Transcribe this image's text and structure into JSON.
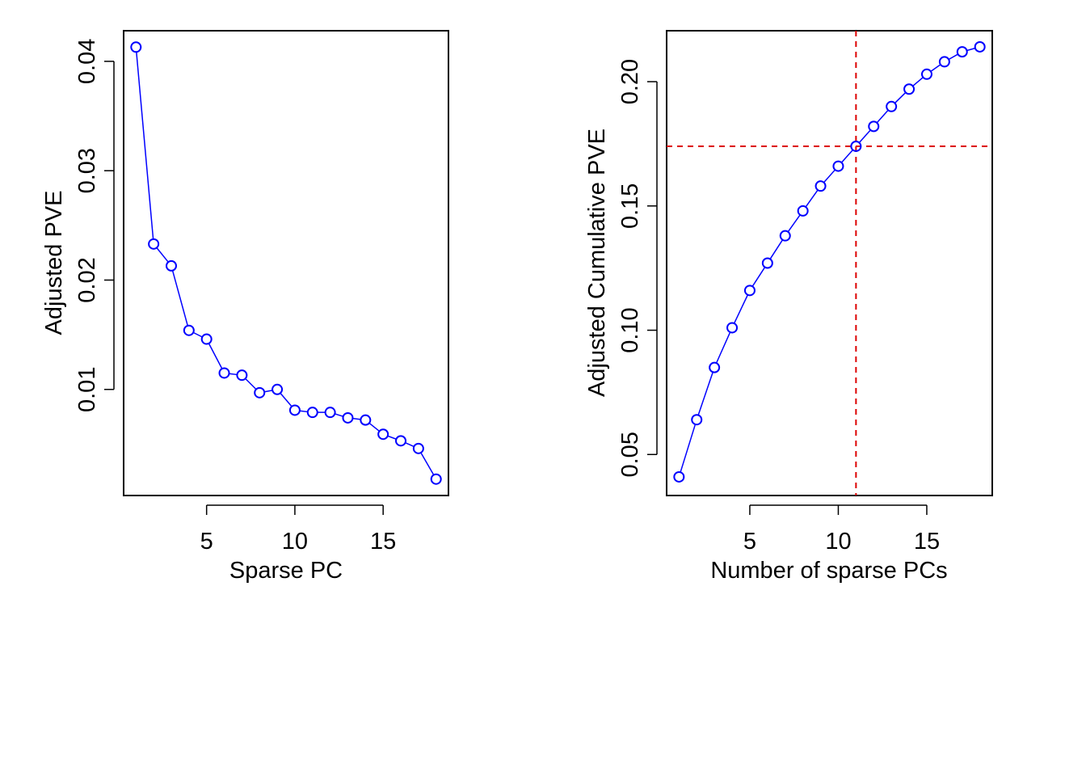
{
  "chart_data": [
    {
      "type": "line",
      "xlabel": "Sparse PC",
      "ylabel": "Adjusted PVE",
      "xlim": [
        0.3,
        18.7
      ],
      "ylim": [
        0.0003,
        0.0428
      ],
      "x_ticks": [
        5,
        10,
        15
      ],
      "x_tick_labels": [
        "5",
        "10",
        "15"
      ],
      "y_ticks": [
        0.01,
        0.02,
        0.03,
        0.04
      ],
      "y_tick_labels": [
        "0.01",
        "0.02",
        "0.03",
        "0.04"
      ],
      "series": [
        {
          "color": "#0000ff",
          "marker": "open-circle",
          "x": [
            1,
            2,
            3,
            4,
            5,
            6,
            7,
            8,
            9,
            10,
            11,
            12,
            13,
            14,
            15,
            16,
            17,
            18
          ],
          "values": [
            0.0413,
            0.0233,
            0.0213,
            0.0154,
            0.0146,
            0.0115,
            0.0113,
            0.0097,
            0.01,
            0.0081,
            0.0079,
            0.0079,
            0.0074,
            0.0072,
            0.0059,
            0.0053,
            0.0046,
            0.0018
          ]
        }
      ],
      "grid": false,
      "legend": "none"
    },
    {
      "type": "line",
      "xlabel": "Number of sparse PCs",
      "ylabel": "Adjusted Cumulative PVE",
      "xlim": [
        0.3,
        18.7
      ],
      "ylim": [
        0.0335,
        0.2205
      ],
      "x_ticks": [
        5,
        10,
        15
      ],
      "x_tick_labels": [
        "5",
        "10",
        "15"
      ],
      "y_ticks": [
        0.05,
        0.1,
        0.15,
        0.2
      ],
      "y_tick_labels": [
        "0.05",
        "0.10",
        "0.15",
        "0.20"
      ],
      "series": [
        {
          "color": "#0000ff",
          "marker": "open-circle",
          "x": [
            1,
            2,
            3,
            4,
            5,
            6,
            7,
            8,
            9,
            10,
            11,
            12,
            13,
            14,
            15,
            16,
            17,
            18
          ],
          "values": [
            0.041,
            0.064,
            0.085,
            0.101,
            0.116,
            0.127,
            0.138,
            0.148,
            0.158,
            0.166,
            0.174,
            0.182,
            0.19,
            0.197,
            0.203,
            0.208,
            0.212,
            0.214
          ]
        }
      ],
      "reference_lines": {
        "color": "#dd0000",
        "style": "dashed",
        "vertical_x": 11,
        "horizontal_y": 0.174
      },
      "grid": false,
      "legend": "none"
    }
  ]
}
